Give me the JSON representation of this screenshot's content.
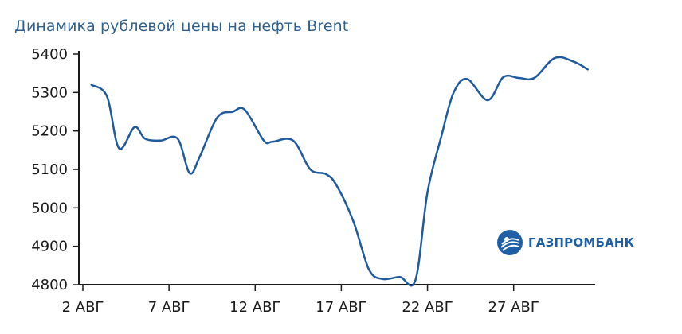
{
  "title": "Динамика рублевой цены на нефть Brent",
  "logo_text": "ГАЗПРОМБАНК",
  "colors": {
    "line": "#1f5a9e",
    "title": "#2f5f8c",
    "brand": "#1f5fa5",
    "axis": "#1a1a1a"
  },
  "chart_data": {
    "type": "line",
    "title": "Динамика рублевой цены на нефть Brent",
    "xlabel": "",
    "ylabel": "",
    "ylim": [
      4800,
      5400
    ],
    "xlim": [
      1,
      30.5
    ],
    "yticks": [
      4800,
      4900,
      5000,
      5100,
      5200,
      5300,
      5400
    ],
    "ytick_labels": [
      "4800",
      "4900",
      "5000",
      "5100",
      "5200",
      "5300",
      "5400"
    ],
    "xticks": [
      1,
      6,
      11,
      16,
      21,
      26
    ],
    "xtick_labels": [
      "2 АВГ",
      "7 АВГ",
      "12 АВГ",
      "17 АВГ",
      "22 АВГ",
      "27 АВГ"
    ],
    "series": [
      {
        "x": [
          1.5,
          2.4,
          3.1,
          4.0,
          4.6,
          5.5,
          6.5,
          7.2,
          7.8,
          8.8,
          9.7,
          10.4,
          11.5,
          12.0,
          13.2,
          14.2,
          15.1,
          15.7,
          16.7,
          17.6,
          18.4,
          19.4,
          20.3,
          21.0,
          21.8,
          22.5,
          23.3,
          24.5,
          25.4,
          26.3,
          27.2,
          28.4,
          29.5,
          30.3
        ],
        "y": [
          5320,
          5290,
          5155,
          5210,
          5180,
          5175,
          5180,
          5090,
          5135,
          5235,
          5250,
          5255,
          5175,
          5172,
          5175,
          5100,
          5088,
          5060,
          4965,
          4840,
          4815,
          4820,
          4812,
          5040,
          5185,
          5298,
          5335,
          5280,
          5340,
          5338,
          5338,
          5390,
          5380,
          5360
        ]
      }
    ]
  }
}
